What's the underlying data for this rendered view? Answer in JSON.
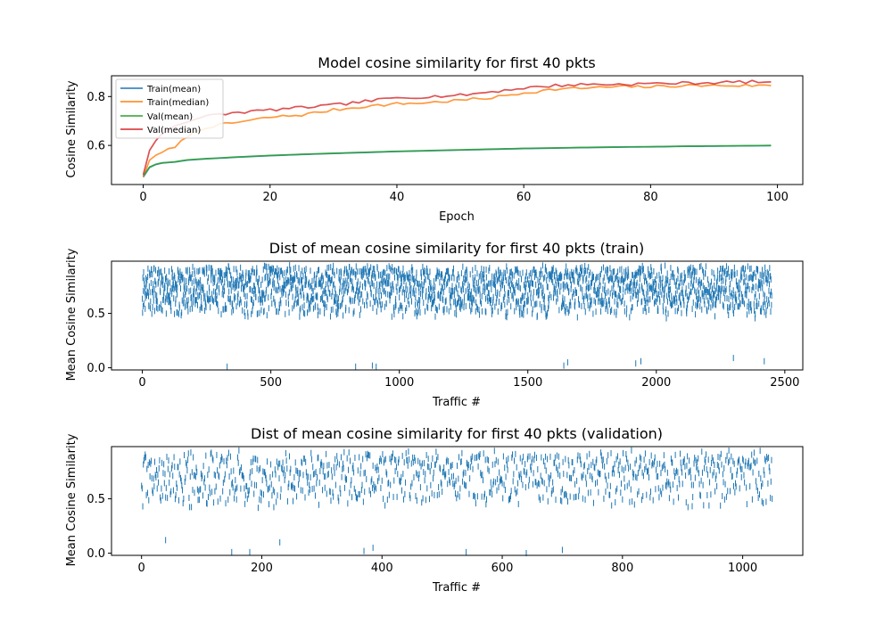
{
  "chart_data": [
    {
      "type": "line",
      "title": "Model cosine similarity for first 40 pkts",
      "xlabel": "Epoch",
      "ylabel": "Cosine Similarity",
      "xlim": [
        -5,
        104
      ],
      "ylim": [
        0.44,
        0.885
      ],
      "xticks": [
        0,
        20,
        40,
        60,
        80,
        100
      ],
      "yticks": [
        0.6,
        0.8
      ],
      "legend_position": "top-left",
      "grid": false,
      "series": [
        {
          "name": "Train(mean)",
          "color": "#1f77b4",
          "x": [
            0,
            1,
            2,
            3,
            5,
            7,
            10,
            15,
            20,
            25,
            30,
            35,
            40,
            45,
            50,
            55,
            60,
            65,
            70,
            75,
            80,
            85,
            90,
            95,
            99
          ],
          "y": [
            0.47,
            0.51,
            0.522,
            0.528,
            0.532,
            0.54,
            0.545,
            0.552,
            0.558,
            0.563,
            0.567,
            0.571,
            0.575,
            0.578,
            0.581,
            0.584,
            0.587,
            0.589,
            0.591,
            0.593,
            0.594,
            0.596,
            0.597,
            0.598,
            0.599
          ]
        },
        {
          "name": "Train(median)",
          "color": "#ff7f0e",
          "x": [
            0,
            1,
            2,
            3,
            5,
            7,
            10,
            15,
            20,
            25,
            30,
            35,
            40,
            45,
            50,
            55,
            60,
            65,
            70,
            75,
            80,
            85,
            90,
            95,
            99
          ],
          "y": [
            0.47,
            0.54,
            0.56,
            0.575,
            0.59,
            0.64,
            0.675,
            0.695,
            0.715,
            0.725,
            0.745,
            0.76,
            0.77,
            0.775,
            0.785,
            0.795,
            0.815,
            0.83,
            0.835,
            0.84,
            0.84,
            0.845,
            0.845,
            0.845,
            0.845
          ]
        },
        {
          "name": "Val(mean)",
          "color": "#2ca02c",
          "x": [
            0,
            1,
            2,
            3,
            5,
            7,
            10,
            15,
            20,
            25,
            30,
            35,
            40,
            45,
            50,
            55,
            60,
            65,
            70,
            75,
            80,
            85,
            90,
            95,
            99
          ],
          "y": [
            0.475,
            0.512,
            0.523,
            0.529,
            0.533,
            0.541,
            0.546,
            0.553,
            0.559,
            0.564,
            0.568,
            0.572,
            0.576,
            0.579,
            0.582,
            0.585,
            0.588,
            0.59,
            0.592,
            0.594,
            0.595,
            0.597,
            0.598,
            0.599,
            0.6
          ]
        },
        {
          "name": "Val(median)",
          "color": "#d62728",
          "x": [
            0,
            1,
            2,
            3,
            5,
            7,
            10,
            15,
            20,
            25,
            30,
            35,
            40,
            45,
            50,
            55,
            60,
            65,
            70,
            75,
            80,
            85,
            90,
            95,
            99
          ],
          "y": [
            0.48,
            0.58,
            0.62,
            0.65,
            0.68,
            0.7,
            0.72,
            0.735,
            0.745,
            0.755,
            0.765,
            0.78,
            0.795,
            0.8,
            0.805,
            0.82,
            0.835,
            0.845,
            0.85,
            0.85,
            0.853,
            0.855,
            0.857,
            0.86,
            0.86
          ]
        }
      ]
    },
    {
      "type": "scatter",
      "marker": "|",
      "color": "#1f77b4",
      "title": "Dist of mean cosine similarity for first 40 pkts (train)",
      "xlabel": "Traffic #",
      "ylabel": "Mean Cosine Similarity",
      "xlim": [
        -120,
        2570
      ],
      "ylim": [
        -0.02,
        0.98
      ],
      "xticks": [
        0,
        500,
        1000,
        1500,
        2000,
        2500
      ],
      "yticks": [
        0.0,
        0.5
      ],
      "n_points": 2450,
      "y_range": [
        0.25,
        0.95
      ],
      "outliers": [
        {
          "x": 330,
          "y": 0.01
        },
        {
          "x": 830,
          "y": 0.01
        },
        {
          "x": 895,
          "y": 0.02
        },
        {
          "x": 910,
          "y": 0.01
        },
        {
          "x": 1640,
          "y": 0.02
        },
        {
          "x": 1655,
          "y": 0.05
        },
        {
          "x": 1920,
          "y": 0.04
        },
        {
          "x": 2420,
          "y": 0.06
        },
        {
          "x": 2300,
          "y": 0.09
        },
        {
          "x": 1940,
          "y": 0.06
        }
      ]
    },
    {
      "type": "scatter",
      "marker": "|",
      "color": "#1f77b4",
      "title": "Dist of mean cosine similarity for first 40 pkts (validation)",
      "xlabel": "Traffic #",
      "ylabel": "Mean Cosine Similarity",
      "xlim": [
        -50,
        1100
      ],
      "ylim": [
        -0.02,
        0.98
      ],
      "xticks": [
        0,
        200,
        400,
        600,
        800,
        1000
      ],
      "yticks": [
        0.0,
        0.5
      ],
      "n_points": 1050,
      "y_range": [
        0.2,
        0.95
      ],
      "outliers": [
        {
          "x": 40,
          "y": 0.12
        },
        {
          "x": 150,
          "y": 0.01
        },
        {
          "x": 180,
          "y": 0.01
        },
        {
          "x": 230,
          "y": 0.1
        },
        {
          "x": 370,
          "y": 0.02
        },
        {
          "x": 385,
          "y": 0.05
        },
        {
          "x": 540,
          "y": 0.01
        },
        {
          "x": 640,
          "y": 0.0
        },
        {
          "x": 700,
          "y": 0.03
        }
      ]
    }
  ]
}
